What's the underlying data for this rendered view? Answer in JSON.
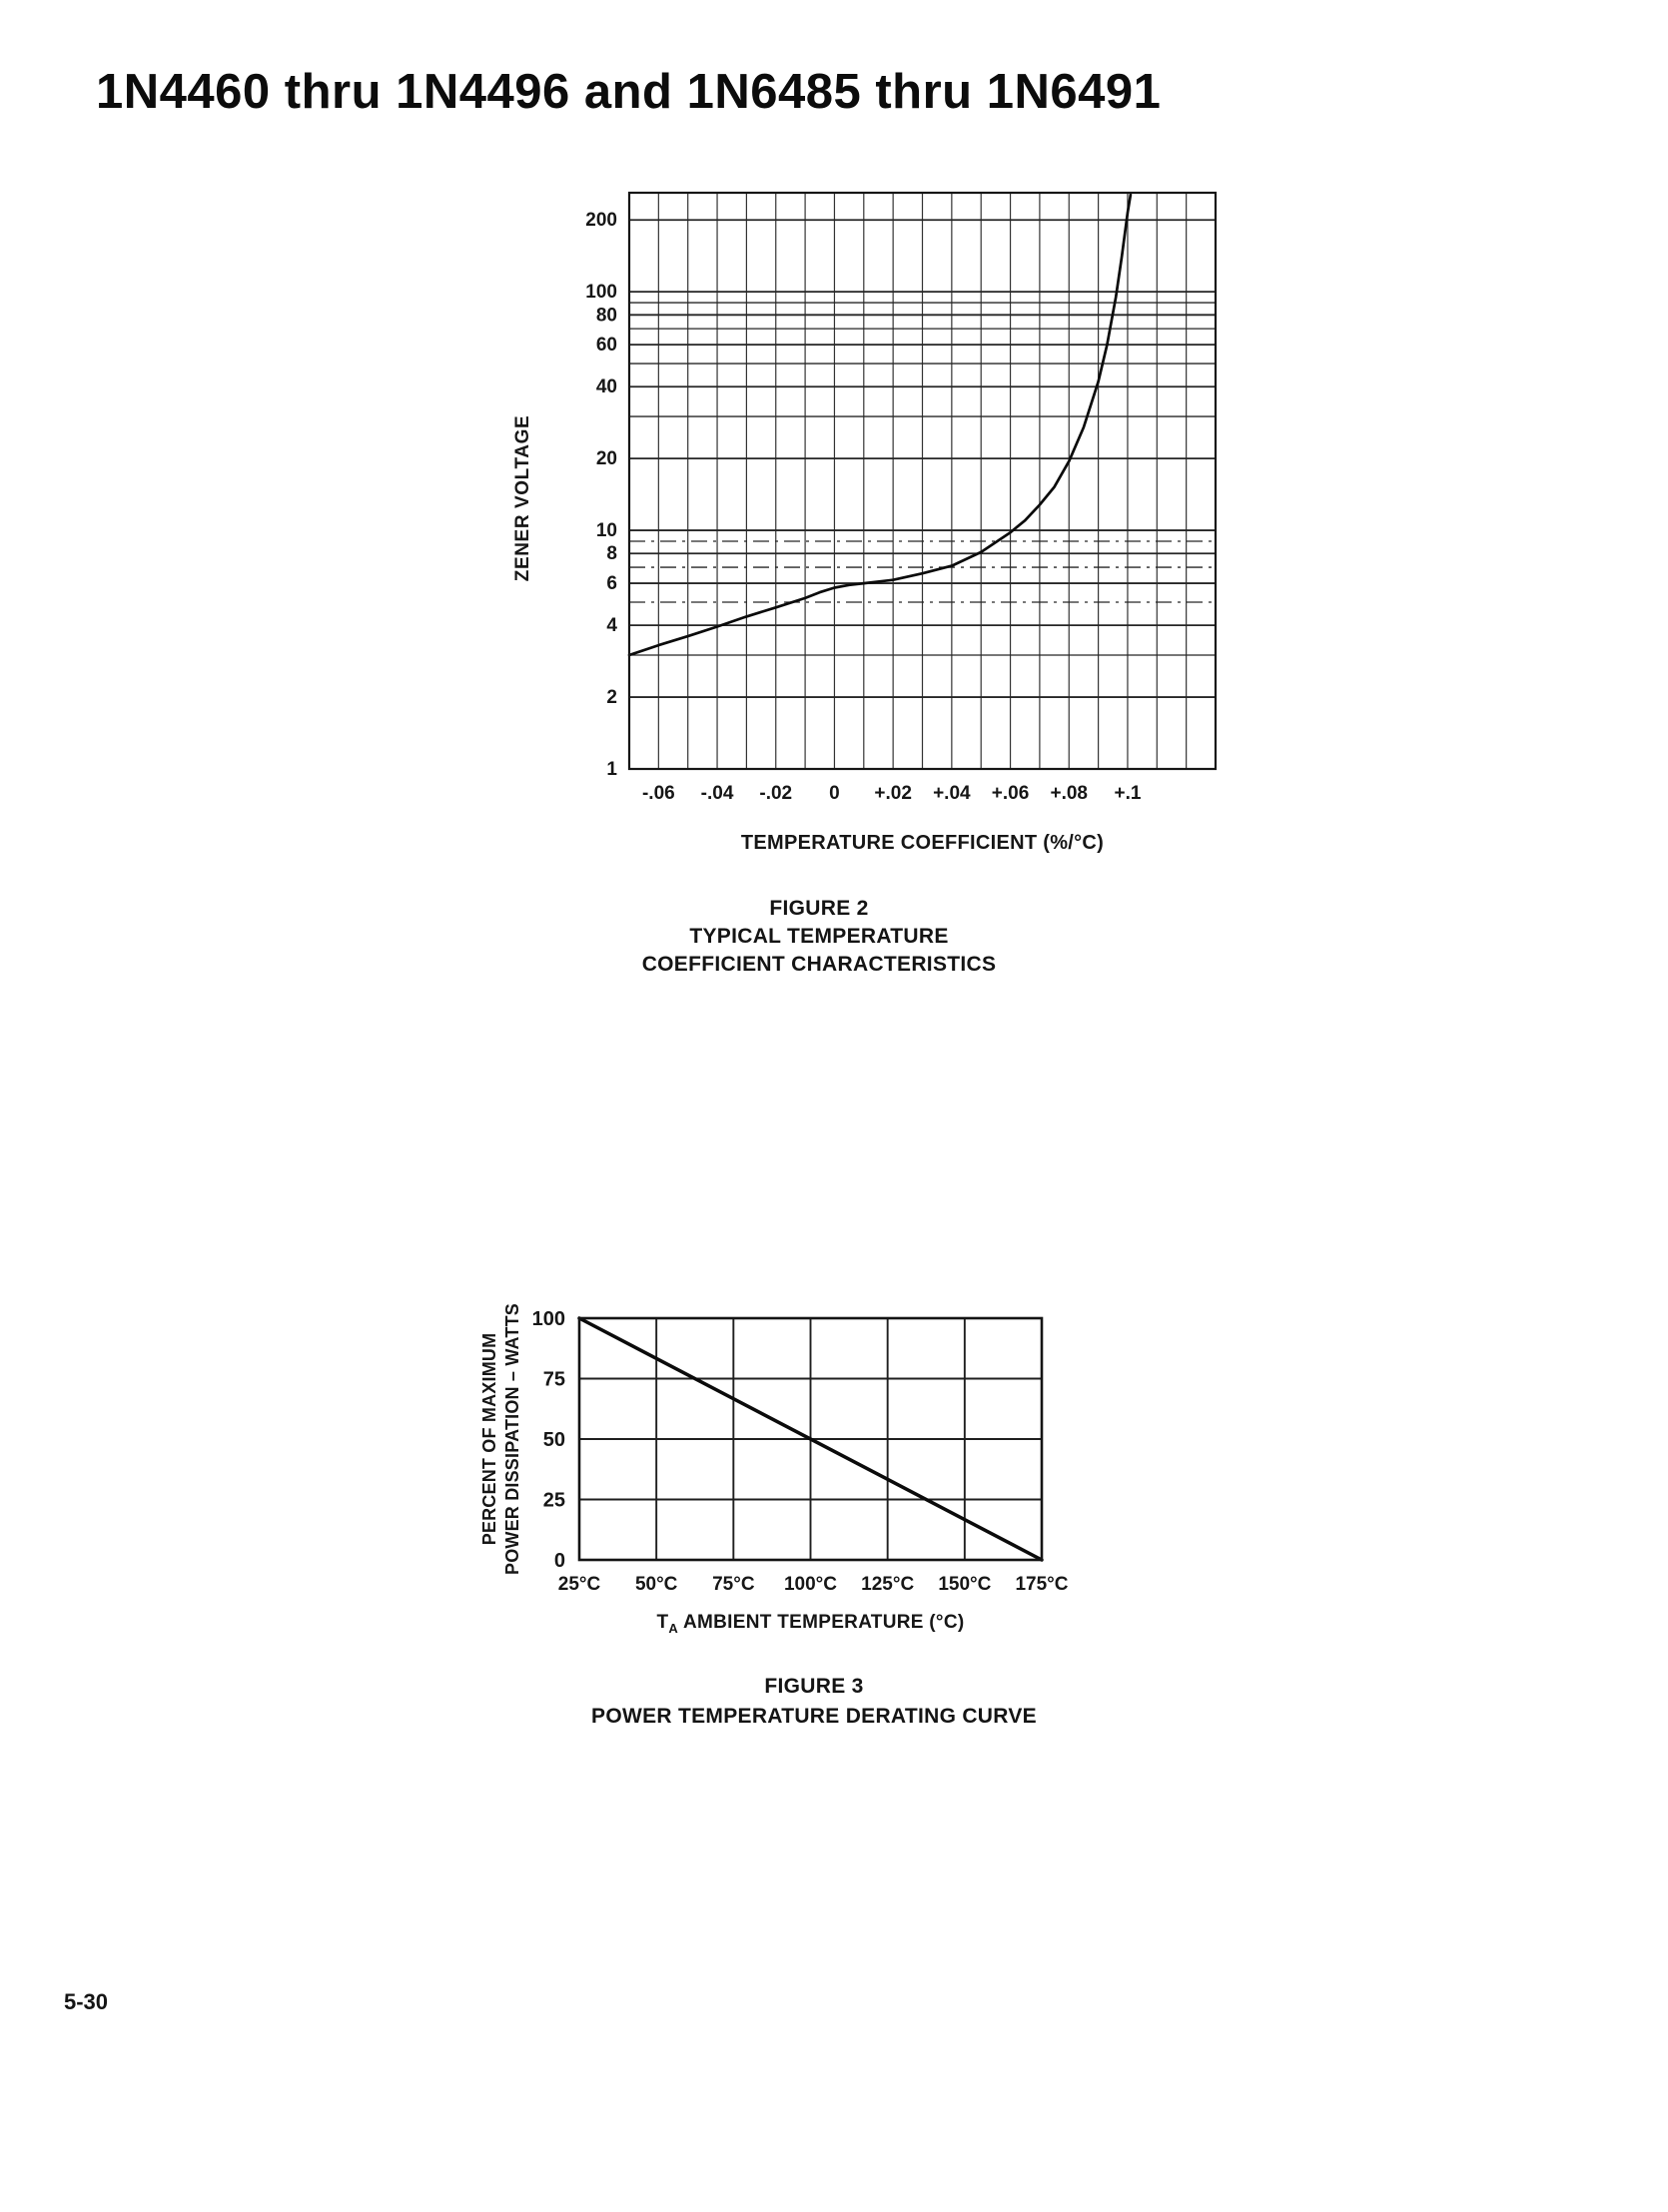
{
  "page": {
    "title": "1N4460 thru 1N4496 and 1N6485 thru 1N6491",
    "page_number": "5-30"
  },
  "figure2": {
    "ylabel": "ZENER VOLTAGE",
    "xlabel": "TEMPERATURE COEFFICIENT (%/°C)",
    "caption": [
      "FIGURE 2",
      "TYPICAL TEMPERATURE",
      "COEFFICIENT CHARACTERISTICS"
    ]
  },
  "figure3": {
    "ylabel_lines": [
      "PERCENT OF MAXIMUM",
      "POWER DISSIPATION – WATTS"
    ],
    "xlabel_prefix": "T",
    "xlabel_sub": "A",
    "xlabel_rest": " AMBIENT TEMPERATURE (°C)",
    "caption": [
      "FIGURE 3",
      "POWER TEMPERATURE DERATING CURVE"
    ]
  },
  "chart_data": [
    {
      "type": "line",
      "title": "FIGURE 2 TYPICAL TEMPERATURE COEFFICIENT CHARACTERISTICS",
      "xlabel": "TEMPERATURE COEFFICIENT (%/°C)",
      "ylabel": "ZENER VOLTAGE",
      "x_scale": "linear",
      "y_scale": "log",
      "grid": true,
      "legend": "none",
      "xlim": [
        -0.07,
        0.13
      ],
      "ylim": [
        1,
        260
      ],
      "x_ticks": [
        -0.06,
        -0.04,
        -0.02,
        0,
        0.02,
        0.04,
        0.06,
        0.08,
        0.1
      ],
      "x_tick_labels": [
        "-.06",
        "-.04",
        "-.02",
        "0",
        "+.02",
        "+.04",
        "+.06",
        "+.08",
        "+.1"
      ],
      "y_ticks": [
        1,
        2,
        4,
        6,
        8,
        10,
        20,
        40,
        60,
        80,
        100,
        200
      ],
      "x_grid_step": 0.01,
      "series": [
        {
          "name": "typical temperature coefficient",
          "points": [
            [
              -0.07,
              3.0
            ],
            [
              -0.06,
              3.3
            ],
            [
              -0.05,
              3.6
            ],
            [
              -0.04,
              3.95
            ],
            [
              -0.03,
              4.35
            ],
            [
              -0.02,
              4.75
            ],
            [
              -0.01,
              5.2
            ],
            [
              -0.005,
              5.5
            ],
            [
              0,
              5.75
            ],
            [
              0.005,
              5.9
            ],
            [
              0.01,
              6.0
            ],
            [
              0.02,
              6.2
            ],
            [
              0.03,
              6.6
            ],
            [
              0.04,
              7.1
            ],
            [
              0.05,
              8.1
            ],
            [
              0.06,
              9.8
            ],
            [
              0.065,
              11
            ],
            [
              0.07,
              12.8
            ],
            [
              0.075,
              15.2
            ],
            [
              0.08,
              19.5
            ],
            [
              0.085,
              27
            ],
            [
              0.09,
              42
            ],
            [
              0.093,
              60
            ],
            [
              0.096,
              95
            ],
            [
              0.098,
              140
            ],
            [
              0.1,
              215
            ],
            [
              0.101,
              255
            ]
          ]
        }
      ]
    },
    {
      "type": "line",
      "title": "FIGURE 3 POWER TEMPERATURE DERATING CURVE",
      "xlabel": "TA AMBIENT TEMPERATURE (°C)",
      "ylabel": "PERCENT OF MAXIMUM POWER DISSIPATION – WATTS",
      "x_scale": "linear",
      "y_scale": "linear",
      "grid": true,
      "legend": "none",
      "xlim": [
        25,
        175
      ],
      "ylim": [
        0,
        100
      ],
      "x_ticks": [
        25,
        50,
        75,
        100,
        125,
        150,
        175
      ],
      "x_tick_labels": [
        "25°C",
        "50°C",
        "75°C",
        "100°C",
        "125°C",
        "150°C",
        "175°C"
      ],
      "y_ticks": [
        0,
        25,
        50,
        75,
        100
      ],
      "y_tick_labels": [
        "0",
        "25",
        "50",
        "75",
        "100"
      ],
      "series": [
        {
          "name": "power derating",
          "points": [
            [
              25,
              100
            ],
            [
              175,
              0
            ]
          ]
        }
      ]
    }
  ]
}
